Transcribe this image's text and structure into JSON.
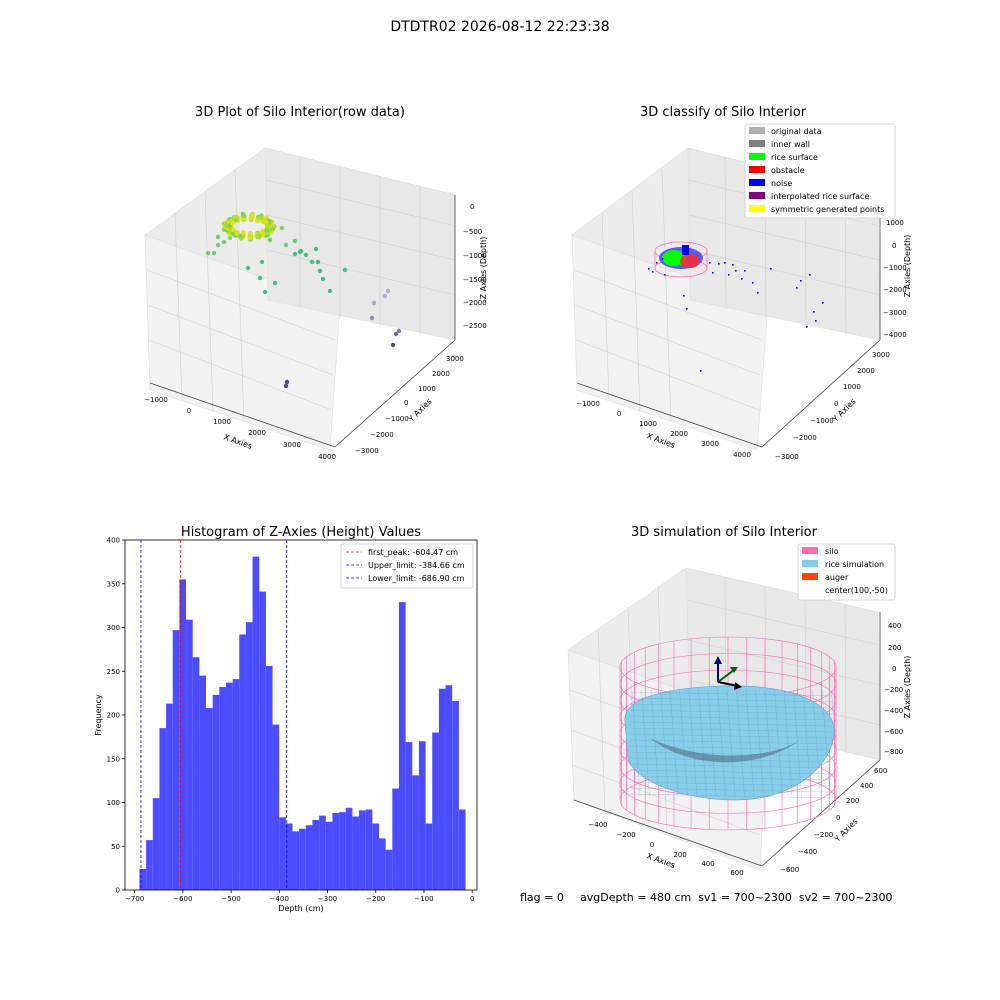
{
  "suptitle": "DTDTR02 2026-08-12 22:23:38",
  "footer": {
    "flag": "flag = 0",
    "avg": "avgDepth = 480 cm  sv1 = 700~2300  sv2 = 700~2300"
  },
  "colors": {
    "silo": "#ff69b4",
    "rice": "#87ceeb",
    "auger": "#ff4500",
    "hist_bar": "#4b4bff",
    "peak_line": "#ff0000",
    "limit_line": "#0000ff"
  },
  "chart_data": [
    {
      "type": "scatter",
      "panel": "raw",
      "title": "3D Plot of Silo Interior(row data)",
      "xlabel": "X Axies",
      "ylabel": "Y Axies",
      "zlabel": "Z Axies (Depth)",
      "x_ticks": [
        "−1000",
        "0",
        "1000",
        "2000",
        "3000",
        "4000"
      ],
      "y_ticks": [
        "−3000",
        "−2000",
        "−1000",
        "0",
        "1000",
        "2000",
        "3000"
      ],
      "z_ticks": [
        "0",
        "−500",
        "−1000",
        "−1500",
        "−2000",
        "−2500"
      ],
      "colormap": "viridis (depth)"
    },
    {
      "type": "scatter",
      "panel": "classified",
      "title": "3D classify of Silo Interior",
      "xlabel": "X Axies",
      "ylabel": "Y Axies",
      "zlabel": "Z Axies (Depth)",
      "x_ticks": [
        "−1000",
        "0",
        "1000",
        "2000",
        "3000",
        "4000"
      ],
      "y_ticks": [
        "−3000",
        "−2000",
        "−1000",
        "0",
        "1000",
        "2000",
        "3000"
      ],
      "z_ticks": [
        "1000",
        "0",
        "−1000",
        "−2000",
        "−3000",
        "−4000"
      ],
      "legend": [
        {
          "label": "original data",
          "color": "#b0b0b0"
        },
        {
          "label": "inner wall",
          "color": "#808080"
        },
        {
          "label": "rice surface",
          "color": "#00ff00"
        },
        {
          "label": "obstacle",
          "color": "#ff0000"
        },
        {
          "label": "noise",
          "color": "#0000ff"
        },
        {
          "label": "interpolated rice surface",
          "color": "#800080"
        },
        {
          "label": "symmetric generated points",
          "color": "#ffff00"
        }
      ]
    },
    {
      "type": "bar",
      "panel": "histogram",
      "title": "Histogram of Z-Axies (Height) Values",
      "xlabel": "Depth (cm)",
      "ylabel": "Frequency",
      "xlim": [
        -720,
        10
      ],
      "ylim": [
        0,
        400
      ],
      "x_ticks": [
        -700,
        -600,
        -500,
        -400,
        -300,
        -200,
        -100,
        0
      ],
      "y_ticks": [
        0,
        50,
        100,
        150,
        200,
        250,
        300,
        350,
        400
      ],
      "bin_start": -690,
      "bin_width": 13.8,
      "values": [
        24,
        57,
        105,
        185,
        213,
        297,
        355,
        309,
        266,
        245,
        208,
        223,
        232,
        237,
        241,
        292,
        306,
        381,
        341,
        256,
        189,
        83,
        76,
        67,
        70,
        74,
        80,
        85,
        78,
        88,
        89,
        94,
        84,
        91,
        92,
        76,
        59,
        46,
        116,
        329,
        169,
        131,
        170,
        76,
        180,
        230,
        234,
        216,
        92
      ],
      "lines": [
        {
          "label": "first_peak: -604.47 cm",
          "x": -604.47,
          "color": "#ff0000"
        },
        {
          "label": "Upper_limit: -384.66 cm",
          "x": -384.66,
          "color": "#0000ff"
        },
        {
          "label": "Lower_limit: -686.90 cm",
          "x": -686.9,
          "color": "#0000ff"
        }
      ]
    },
    {
      "type": "surface",
      "panel": "simulation",
      "title": "3D simulation of Silo Interior",
      "xlabel": "X Axies",
      "ylabel": "Y Axies",
      "zlabel": "Z Axies (Depth)",
      "x_ticks": [
        "−400",
        "−200",
        "0",
        "200",
        "400",
        "600"
      ],
      "y_ticks": [
        "−600",
        "−400",
        "−200",
        "0",
        "200",
        "400",
        "600"
      ],
      "z_ticks": [
        "400",
        "200",
        "0",
        "−200",
        "−400",
        "−600",
        "−800"
      ],
      "legend": [
        {
          "label": "silo",
          "color": "#ff69b4"
        },
        {
          "label": "rice simulation",
          "color": "#87ceeb"
        },
        {
          "label": "auger",
          "color": "#ff4500"
        },
        {
          "label": "center(100,-50)",
          "color": ""
        }
      ]
    }
  ]
}
